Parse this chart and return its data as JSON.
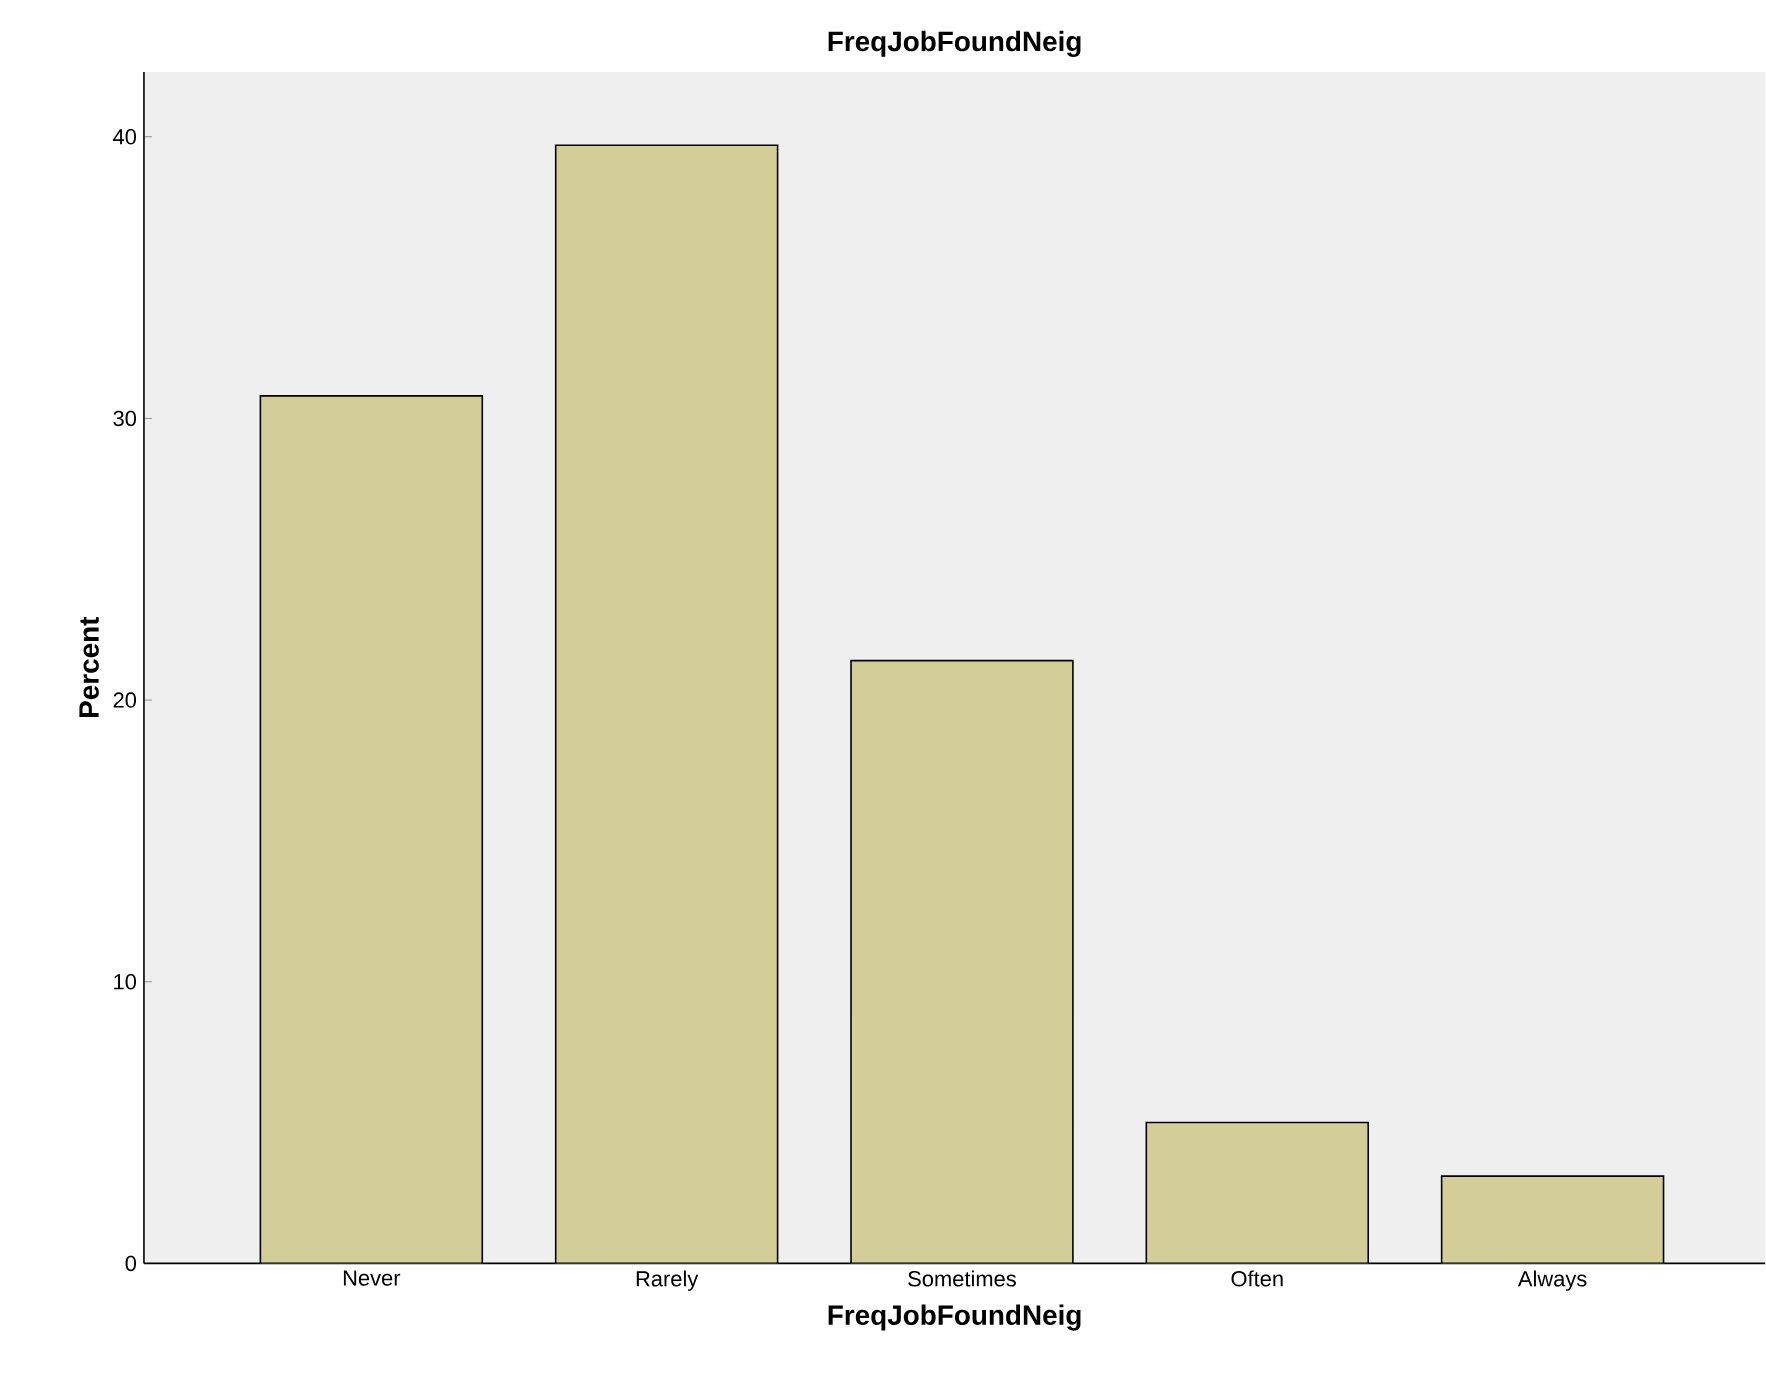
{
  "chart_data": {
    "type": "bar",
    "title": "FreqJobFoundNeig",
    "xlabel": "FreqJobFoundNeig",
    "ylabel": "Percent",
    "categories": [
      "Never",
      "Rarely",
      "Sometimes",
      "Often",
      "Always"
    ],
    "values": [
      30.8,
      39.7,
      21.4,
      5.0,
      3.1
    ],
    "color": "#d3ce97",
    "ylim": [
      0,
      42.3
    ],
    "yticks": [
      0,
      10,
      20,
      30,
      40
    ],
    "grid": false
  }
}
